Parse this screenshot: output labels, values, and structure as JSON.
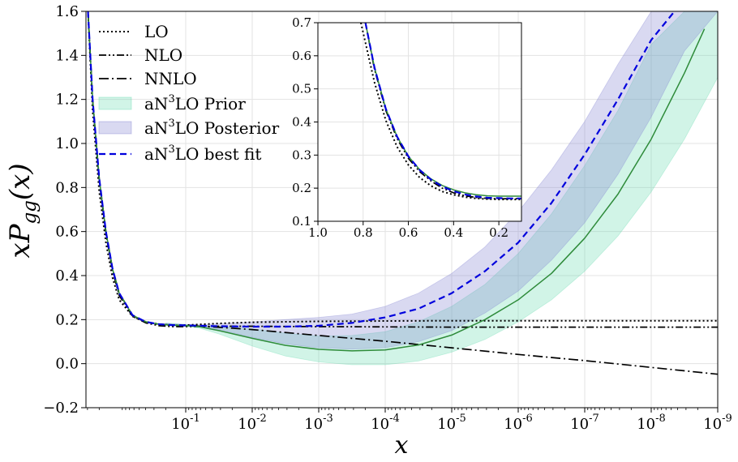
{
  "chart_data": [
    {
      "type": "line",
      "name": "main",
      "xlabel": "x",
      "ylabel_main": "xP",
      "ylabel_sub": "gg",
      "ylabel_tail": "(x)",
      "x_scale": "log, reversed (exponent of 10)",
      "xlim": [
        0.5,
        -9
      ],
      "ylim": [
        -0.2,
        1.6
      ],
      "x_ticks": [
        {
          "exp": -1,
          "base": "10",
          "sup": "-1"
        },
        {
          "exp": -2,
          "base": "10",
          "sup": "-2"
        },
        {
          "exp": -3,
          "base": "10",
          "sup": "-3"
        },
        {
          "exp": -4,
          "base": "10",
          "sup": "-4"
        },
        {
          "exp": -5,
          "base": "10",
          "sup": "-5"
        },
        {
          "exp": -6,
          "base": "10",
          "sup": "-6"
        },
        {
          "exp": -7,
          "base": "10",
          "sup": "-7"
        },
        {
          "exp": -8,
          "base": "10",
          "sup": "-8"
        },
        {
          "exp": -9,
          "base": "10",
          "sup": "-9"
        }
      ],
      "y_ticks": [
        -0.2,
        0.0,
        0.2,
        0.4,
        0.6,
        0.8,
        1.0,
        1.2,
        1.4,
        1.6
      ],
      "y_tick_labels": [
        "−0.2",
        "0.0",
        "0.2",
        "0.4",
        "0.6",
        "0.8",
        "1.0",
        "1.2",
        "1.4",
        "1.6"
      ],
      "grid": true,
      "legend_position": "top-left",
      "series": [
        {
          "name": "LO",
          "style": "dotted",
          "color": "#000000",
          "x_exp": [
            0.47,
            0.4,
            0.3,
            0.2,
            0.1,
            0.0,
            -0.2,
            -0.4,
            -0.6,
            -0.8,
            -1.0,
            -1.2,
            -1.5,
            -2,
            -3,
            -4,
            -5,
            -6,
            -7,
            -8,
            -9
          ],
          "y": [
            1.6,
            1.15,
            0.78,
            0.55,
            0.39,
            0.29,
            0.215,
            0.19,
            0.178,
            0.174,
            0.175,
            0.178,
            0.183,
            0.188,
            0.192,
            0.194,
            0.195,
            0.195,
            0.195,
            0.195,
            0.195
          ]
        },
        {
          "name": "NLO",
          "style": "dashdotdot",
          "color": "#000000",
          "x_exp": [
            0.47,
            0.4,
            0.3,
            0.2,
            0.1,
            0.0,
            -0.2,
            -0.4,
            -0.6,
            -0.8,
            -1.0,
            -1.2,
            -1.5,
            -2,
            -3,
            -4,
            -5,
            -6,
            -7,
            -8,
            -9
          ],
          "y": [
            1.6,
            1.2,
            0.83,
            0.59,
            0.42,
            0.31,
            0.215,
            0.185,
            0.172,
            0.168,
            0.168,
            0.169,
            0.17,
            0.17,
            0.168,
            0.167,
            0.166,
            0.166,
            0.166,
            0.166,
            0.166
          ]
        },
        {
          "name": "NNLO",
          "style": "dashdot",
          "color": "#000000",
          "x_exp": [
            0.47,
            0.4,
            0.3,
            0.2,
            0.1,
            0.0,
            -0.2,
            -0.4,
            -0.6,
            -0.8,
            -1.0,
            -1.2,
            -1.5,
            -2,
            -3,
            -4,
            -5,
            -6,
            -7,
            -8,
            -9
          ],
          "y": [
            1.6,
            1.2,
            0.84,
            0.6,
            0.43,
            0.32,
            0.22,
            0.19,
            0.18,
            0.175,
            0.172,
            0.17,
            0.165,
            0.155,
            0.128,
            0.102,
            0.072,
            0.042,
            0.014,
            -0.017,
            -0.048
          ]
        },
        {
          "name": "aN³LO central",
          "style": "solid",
          "color": "#2e8b3a",
          "x_exp": [
            0.47,
            0.4,
            0.3,
            0.2,
            0.1,
            0.0,
            -0.2,
            -0.4,
            -0.6,
            -0.8,
            -1.0,
            -1.2,
            -1.5,
            -2,
            -2.5,
            -3,
            -3.5,
            -4,
            -4.5,
            -5,
            -5.5,
            -6,
            -6.5,
            -7,
            -7.5,
            -8,
            -8.5,
            -8.8
          ],
          "y": [
            1.6,
            1.2,
            0.84,
            0.6,
            0.43,
            0.32,
            0.22,
            0.19,
            0.179,
            0.175,
            0.173,
            0.168,
            0.15,
            0.115,
            0.083,
            0.065,
            0.058,
            0.062,
            0.085,
            0.13,
            0.2,
            0.29,
            0.41,
            0.57,
            0.77,
            1.02,
            1.32,
            1.52
          ]
        },
        {
          "name": "aN³LO best fit",
          "style": "dashed",
          "color": "#0000dd",
          "x_exp": [
            0.47,
            0.4,
            0.3,
            0.2,
            0.1,
            0.0,
            -0.2,
            -0.4,
            -0.6,
            -0.8,
            -1.0,
            -1.2,
            -1.5,
            -2,
            -2.5,
            -3,
            -3.5,
            -4,
            -4.5,
            -5,
            -5.5,
            -6,
            -6.5,
            -7,
            -7.5,
            -8,
            -8.35
          ],
          "y": [
            1.6,
            1.2,
            0.84,
            0.6,
            0.43,
            0.32,
            0.22,
            0.19,
            0.179,
            0.175,
            0.174,
            0.172,
            0.17,
            0.168,
            0.168,
            0.172,
            0.185,
            0.21,
            0.25,
            0.32,
            0.42,
            0.55,
            0.73,
            0.95,
            1.2,
            1.47,
            1.6
          ]
        }
      ],
      "bands": [
        {
          "name": "aN³LO Prior",
          "color": "#66d9b0",
          "opacity": 0.3,
          "x_exp": [
            -0.7,
            -1.0,
            -1.2,
            -1.5,
            -2,
            -2.5,
            -3,
            -3.5,
            -4,
            -4.5,
            -5,
            -5.5,
            -6,
            -6.5,
            -7,
            -7.5,
            -8,
            -8.5,
            -9
          ],
          "lower": [
            0.175,
            0.17,
            0.162,
            0.135,
            0.08,
            0.035,
            0.008,
            -0.005,
            -0.005,
            0.012,
            0.052,
            0.11,
            0.19,
            0.29,
            0.42,
            0.58,
            0.78,
            1.02,
            1.3
          ],
          "upper": [
            0.185,
            0.178,
            0.174,
            0.17,
            0.158,
            0.138,
            0.125,
            0.128,
            0.145,
            0.19,
            0.26,
            0.36,
            0.5,
            0.68,
            0.9,
            1.15,
            1.45,
            1.6,
            1.6
          ]
        },
        {
          "name": "aN³LO Posterior",
          "color": "#8080d0",
          "opacity": 0.3,
          "x_exp": [
            -0.7,
            -1.0,
            -1.2,
            -1.5,
            -2,
            -2.5,
            -3,
            -3.5,
            -4,
            -4.5,
            -5,
            -5.5,
            -6,
            -6.5,
            -7,
            -7.5,
            -8,
            -8.5,
            -9
          ],
          "lower": [
            0.176,
            0.173,
            0.168,
            0.155,
            0.12,
            0.09,
            0.072,
            0.066,
            0.072,
            0.1,
            0.15,
            0.23,
            0.33,
            0.47,
            0.64,
            0.86,
            1.12,
            1.42,
            1.6
          ],
          "upper": [
            0.182,
            0.178,
            0.177,
            0.18,
            0.19,
            0.2,
            0.21,
            0.225,
            0.26,
            0.32,
            0.41,
            0.53,
            0.69,
            0.88,
            1.1,
            1.36,
            1.6,
            1.6,
            1.6
          ]
        }
      ]
    },
    {
      "type": "line",
      "name": "inset",
      "xlim": [
        1.0,
        0.1
      ],
      "ylim": [
        0.1,
        0.7
      ],
      "x_ticks": [
        1.0,
        0.8,
        0.6,
        0.4,
        0.2
      ],
      "x_tick_labels": [
        "1.0",
        "0.8",
        "0.6",
        "0.4",
        "0.2"
      ],
      "y_ticks": [
        0.1,
        0.2,
        0.3,
        0.4,
        0.5,
        0.6,
        0.7
      ],
      "y_tick_labels": [
        "0.1",
        "0.2",
        "0.3",
        "0.4",
        "0.5",
        "0.6",
        "0.7"
      ],
      "grid": true,
      "series": [
        {
          "name": "LO",
          "style": "dotted",
          "color": "#000000",
          "x": [
            0.81,
            0.75,
            0.7,
            0.65,
            0.6,
            0.55,
            0.5,
            0.45,
            0.4,
            0.35,
            0.3,
            0.25,
            0.2,
            0.15,
            0.1
          ],
          "y": [
            0.7,
            0.52,
            0.405,
            0.325,
            0.27,
            0.232,
            0.207,
            0.19,
            0.18,
            0.173,
            0.169,
            0.167,
            0.166,
            0.166,
            0.166
          ]
        },
        {
          "name": "NLO",
          "style": "dashdotdot",
          "color": "#000000",
          "x": [
            0.79,
            0.75,
            0.7,
            0.65,
            0.6,
            0.55,
            0.5,
            0.45,
            0.4,
            0.35,
            0.3,
            0.25,
            0.2,
            0.15,
            0.1
          ],
          "y": [
            0.7,
            0.56,
            0.435,
            0.35,
            0.29,
            0.25,
            0.222,
            0.2,
            0.186,
            0.177,
            0.172,
            0.169,
            0.168,
            0.168,
            0.168
          ]
        },
        {
          "name": "aN³LO central",
          "style": "solid",
          "color": "#2e8b3a",
          "x": [
            0.79,
            0.75,
            0.7,
            0.65,
            0.6,
            0.55,
            0.5,
            0.45,
            0.4,
            0.35,
            0.3,
            0.25,
            0.2,
            0.15,
            0.1
          ],
          "y": [
            0.7,
            0.565,
            0.44,
            0.356,
            0.296,
            0.256,
            0.228,
            0.208,
            0.195,
            0.186,
            0.18,
            0.177,
            0.176,
            0.176,
            0.176
          ]
        },
        {
          "name": "aN³LO best fit",
          "style": "dashed",
          "color": "#0000dd",
          "x": [
            0.79,
            0.75,
            0.7,
            0.65,
            0.6,
            0.55,
            0.5,
            0.45,
            0.4,
            0.35,
            0.3,
            0.25,
            0.2,
            0.15,
            0.1
          ],
          "y": [
            0.7,
            0.565,
            0.44,
            0.356,
            0.296,
            0.255,
            0.226,
            0.205,
            0.191,
            0.181,
            0.175,
            0.171,
            0.17,
            0.169,
            0.169
          ]
        }
      ]
    }
  ],
  "legend": [
    {
      "key": "lo",
      "label": "LO",
      "kind": "line",
      "style": "dotted",
      "color": "#000000"
    },
    {
      "key": "nlo",
      "label": "NLO",
      "kind": "line",
      "style": "dashdotdot",
      "color": "#000000"
    },
    {
      "key": "nnlo",
      "label": "NNLO",
      "kind": "line",
      "style": "dashdot",
      "color": "#000000"
    },
    {
      "key": "prior",
      "label_pre": "aN",
      "label_sup": "3",
      "label_post": "LO Prior",
      "kind": "patch",
      "color": "#66d9b0"
    },
    {
      "key": "posterior",
      "label_pre": "aN",
      "label_sup": "3",
      "label_post": "LO Posterior",
      "kind": "patch",
      "color": "#8080d0"
    },
    {
      "key": "bestfit",
      "label_pre": "aN",
      "label_sup": "3",
      "label_post": "LO best fit",
      "kind": "line",
      "style": "dashed",
      "color": "#0000dd"
    }
  ]
}
